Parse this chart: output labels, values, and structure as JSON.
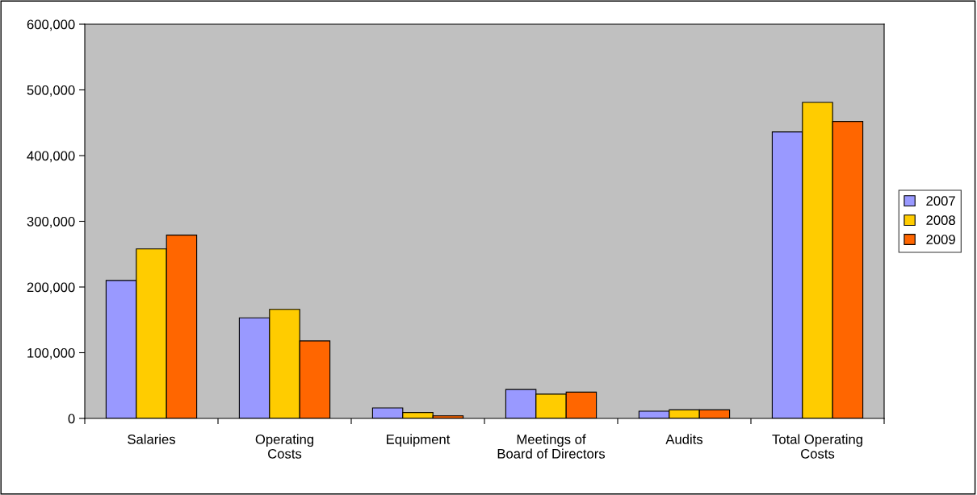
{
  "chart_data": {
    "type": "bar",
    "categories": [
      "Salaries",
      "Operating\nCosts",
      "Equipment",
      "Meetings of\nBoard of Directors",
      "Audits",
      "Total Operating\nCosts"
    ],
    "series": [
      {
        "name": "2007",
        "color": "#9999ff",
        "values": [
          210000,
          153000,
          16000,
          44000,
          11000,
          436000
        ]
      },
      {
        "name": "2008",
        "color": "#ffcc00",
        "values": [
          258000,
          166000,
          9000,
          37000,
          13000,
          481000
        ]
      },
      {
        "name": "2009",
        "color": "#ff6600",
        "values": [
          279000,
          118000,
          4000,
          40000,
          13000,
          452000
        ]
      }
    ],
    "ylim": [
      0,
      600000
    ],
    "yticks": [
      {
        "value": 0,
        "label": "0"
      },
      {
        "value": 100000,
        "label": "100,000"
      },
      {
        "value": 200000,
        "label": "200,000"
      },
      {
        "value": 300000,
        "label": "300,000"
      },
      {
        "value": 400000,
        "label": "400,000"
      },
      {
        "value": 500000,
        "label": "500,000"
      },
      {
        "value": 600000,
        "label": "600,000"
      }
    ],
    "grid": false,
    "legend": "right"
  }
}
